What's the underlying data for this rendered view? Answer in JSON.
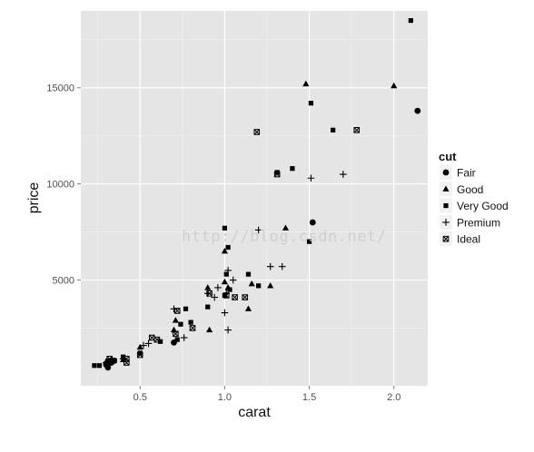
{
  "chart_data": {
    "type": "scatter",
    "title": "",
    "xlabel": "carat",
    "ylabel": "price",
    "xlim": [
      0.15,
      2.2
    ],
    "ylim": [
      -500,
      19000
    ],
    "x_ticks": [
      0.5,
      1.0,
      1.5,
      2.0
    ],
    "x_tick_labels": [
      "0.5",
      "1.0",
      "1.5",
      "2.0"
    ],
    "y_ticks": [
      5000,
      10000,
      15000
    ],
    "y_tick_labels": [
      "5000",
      "10000",
      "15000"
    ],
    "grid": true,
    "legend": {
      "title": "cut",
      "placement": "right",
      "entries": [
        {
          "label": "Fair",
          "shape": "circle"
        },
        {
          "label": "Good",
          "shape": "triangle"
        },
        {
          "label": "Very Good",
          "shape": "square"
        },
        {
          "label": "Premium",
          "shape": "plus"
        },
        {
          "label": "Ideal",
          "shape": "square-x"
        }
      ]
    },
    "colors": {
      "panel": "#e5e5e5",
      "grid_major": "#ffffff",
      "grid_minor": "#f2f2f2",
      "points": "#000000"
    },
    "series": [
      {
        "name": "Fair",
        "points": [
          [
            0.3,
            600
          ],
          [
            0.31,
            450
          ],
          [
            0.33,
            700
          ],
          [
            0.7,
            1750
          ],
          [
            1.52,
            8000
          ],
          [
            2.14,
            13800
          ]
        ]
      },
      {
        "name": "Good",
        "points": [
          [
            0.4,
            850
          ],
          [
            0.5,
            1500
          ],
          [
            0.7,
            2400
          ],
          [
            0.71,
            2900
          ],
          [
            0.9,
            4600
          ],
          [
            0.91,
            2400
          ],
          [
            1.0,
            4900
          ],
          [
            1.0,
            6500
          ],
          [
            1.02,
            4600
          ],
          [
            1.14,
            3500
          ],
          [
            1.16,
            4800
          ],
          [
            1.27,
            4700
          ],
          [
            1.36,
            7700
          ],
          [
            1.48,
            15200
          ],
          [
            2.0,
            15100
          ]
        ]
      },
      {
        "name": "Very Good",
        "points": [
          [
            0.23,
            550
          ],
          [
            0.26,
            550
          ],
          [
            0.3,
            650
          ],
          [
            0.31,
            800
          ],
          [
            0.35,
            800
          ],
          [
            0.4,
            1000
          ],
          [
            0.5,
            1200
          ],
          [
            0.62,
            1800
          ],
          [
            0.72,
            1900
          ],
          [
            0.74,
            2700
          ],
          [
            0.77,
            3500
          ],
          [
            0.8,
            2800
          ],
          [
            0.9,
            3600
          ],
          [
            1.0,
            4200
          ],
          [
            1.0,
            7700
          ],
          [
            1.01,
            5300
          ],
          [
            1.02,
            6700
          ],
          [
            1.03,
            4500
          ],
          [
            1.14,
            5300
          ],
          [
            1.2,
            4700
          ],
          [
            1.31,
            10600
          ],
          [
            1.4,
            10800
          ],
          [
            1.5,
            7000
          ],
          [
            1.51,
            14200
          ],
          [
            1.64,
            12800
          ],
          [
            2.1,
            18500
          ]
        ]
      },
      {
        "name": "Premium",
        "points": [
          [
            0.3,
            700
          ],
          [
            0.4,
            900
          ],
          [
            0.52,
            1600
          ],
          [
            0.55,
            1700
          ],
          [
            0.7,
            3500
          ],
          [
            0.76,
            2000
          ],
          [
            0.9,
            4300
          ],
          [
            0.94,
            4100
          ],
          [
            0.96,
            4600
          ],
          [
            1.0,
            3300
          ],
          [
            1.01,
            4300
          ],
          [
            1.02,
            5500
          ],
          [
            1.02,
            2400
          ],
          [
            1.05,
            5000
          ],
          [
            1.2,
            7600
          ],
          [
            1.27,
            5700
          ],
          [
            1.34,
            5700
          ],
          [
            1.51,
            10300
          ],
          [
            1.7,
            10500
          ]
        ]
      },
      {
        "name": "Ideal",
        "points": [
          [
            0.31,
            700
          ],
          [
            0.32,
            900
          ],
          [
            0.34,
            800
          ],
          [
            0.42,
            700
          ],
          [
            0.42,
            900
          ],
          [
            0.5,
            1100
          ],
          [
            0.57,
            2000
          ],
          [
            0.6,
            1900
          ],
          [
            0.71,
            2200
          ],
          [
            0.72,
            3400
          ],
          [
            0.81,
            2500
          ],
          [
            0.91,
            4300
          ],
          [
            1.01,
            4200
          ],
          [
            1.06,
            4100
          ],
          [
            1.12,
            4100
          ],
          [
            1.19,
            12700
          ],
          [
            1.31,
            10500
          ],
          [
            1.78,
            12800
          ]
        ]
      }
    ]
  },
  "watermark": {
    "text": "http://blog.csdn.net/"
  }
}
